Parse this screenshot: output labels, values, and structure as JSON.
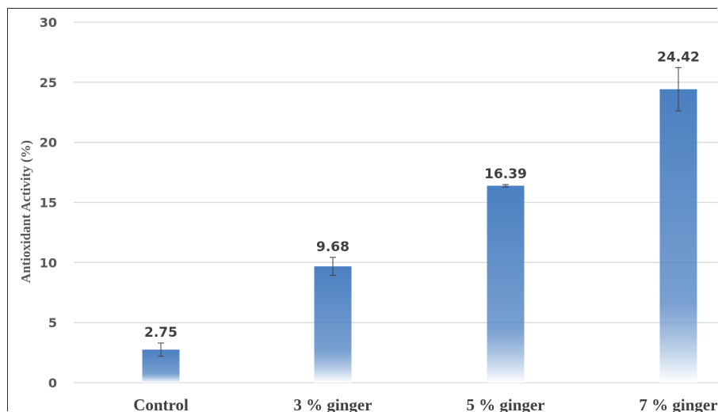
{
  "chart_data": {
    "type": "bar",
    "title": "",
    "xlabel": "",
    "ylabel": "Antioxidant Activity (%)",
    "ylim": [
      0,
      30
    ],
    "yticks": [
      0,
      5,
      10,
      15,
      20,
      25,
      30
    ],
    "categories": [
      "Control",
      "3 % ginger",
      "5 % ginger",
      "7 % ginger"
    ],
    "values": [
      2.75,
      9.68,
      16.39,
      24.42
    ],
    "data_labels": [
      "2.75",
      "9.68",
      "16.39",
      "24.42"
    ],
    "error": [
      0.55,
      0.75,
      0.1,
      1.8
    ],
    "grid": true,
    "legend": "none",
    "colors": {
      "bar_top": "#4a7fc1",
      "bar_bottom": "#ffffff",
      "grid": "#d9d9d9",
      "text": "#404040",
      "error": "#404040"
    }
  }
}
